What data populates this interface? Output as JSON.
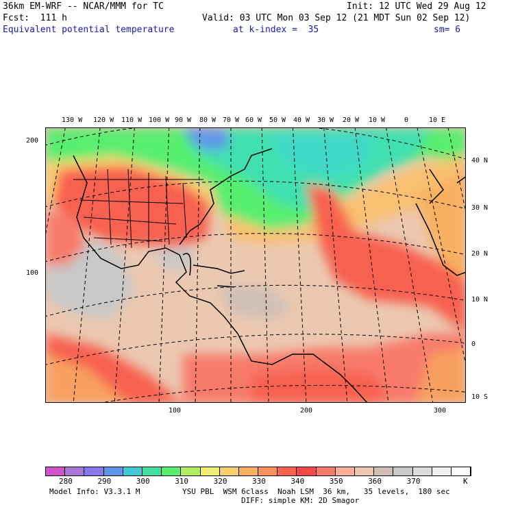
{
  "header": {
    "model": "36km EM-WRF -- NCAR/MMM for TC",
    "init": "Init: 12 UTC Wed 29 Aug 12",
    "fcst": "Fcst:  111 h",
    "valid": "Valid: 03 UTC Mon 03 Sep 12 (21 MDT Sun 02 Sep 12)",
    "field": "Equivalent potential temperature",
    "level": "at k-index =  35",
    "smooth": "sm= 6"
  },
  "map": {
    "lon_labels": [
      "130 W",
      "120 W",
      "110 W",
      "100 W",
      "90 W",
      "80 W",
      "70 W",
      "60 W",
      "50 W",
      "40 W",
      "30 W",
      "20 W",
      "10 W",
      "0",
      "10 E"
    ],
    "lat_labels": [
      "40 N",
      "30 N",
      "20 N",
      "10 N",
      "0",
      "10 S"
    ],
    "grid_x_labels": [
      "100",
      "200",
      "300"
    ],
    "grid_y_labels": [
      "200",
      "100"
    ]
  },
  "colorbar": {
    "colors": [
      "#cc55cc",
      "#a878d8",
      "#8878e8",
      "#6096e8",
      "#40c8d8",
      "#40e0a0",
      "#58ee70",
      "#b0f060",
      "#f0f070",
      "#f8d070",
      "#f8b060",
      "#f89060",
      "#f86050",
      "#f84848",
      "#f87a6a",
      "#f8b098",
      "#ecc8b0",
      "#d0c0b8",
      "#c8c8c8",
      "#dcdcdc",
      "#f0f0f0",
      "#ffffff"
    ],
    "labels": [
      "280",
      "290",
      "300",
      "310",
      "320",
      "330",
      "340",
      "350",
      "360",
      "370"
    ],
    "unit": "K"
  },
  "footer": {
    "line1_left": "Model Info: V3.3.1 M",
    "line1_right": "YSU PBL  WSM 6class  Noah LSM  36 km,   35 levels,  180 sec",
    "line2": "DIFF: simple KM: 2D Smagor"
  }
}
